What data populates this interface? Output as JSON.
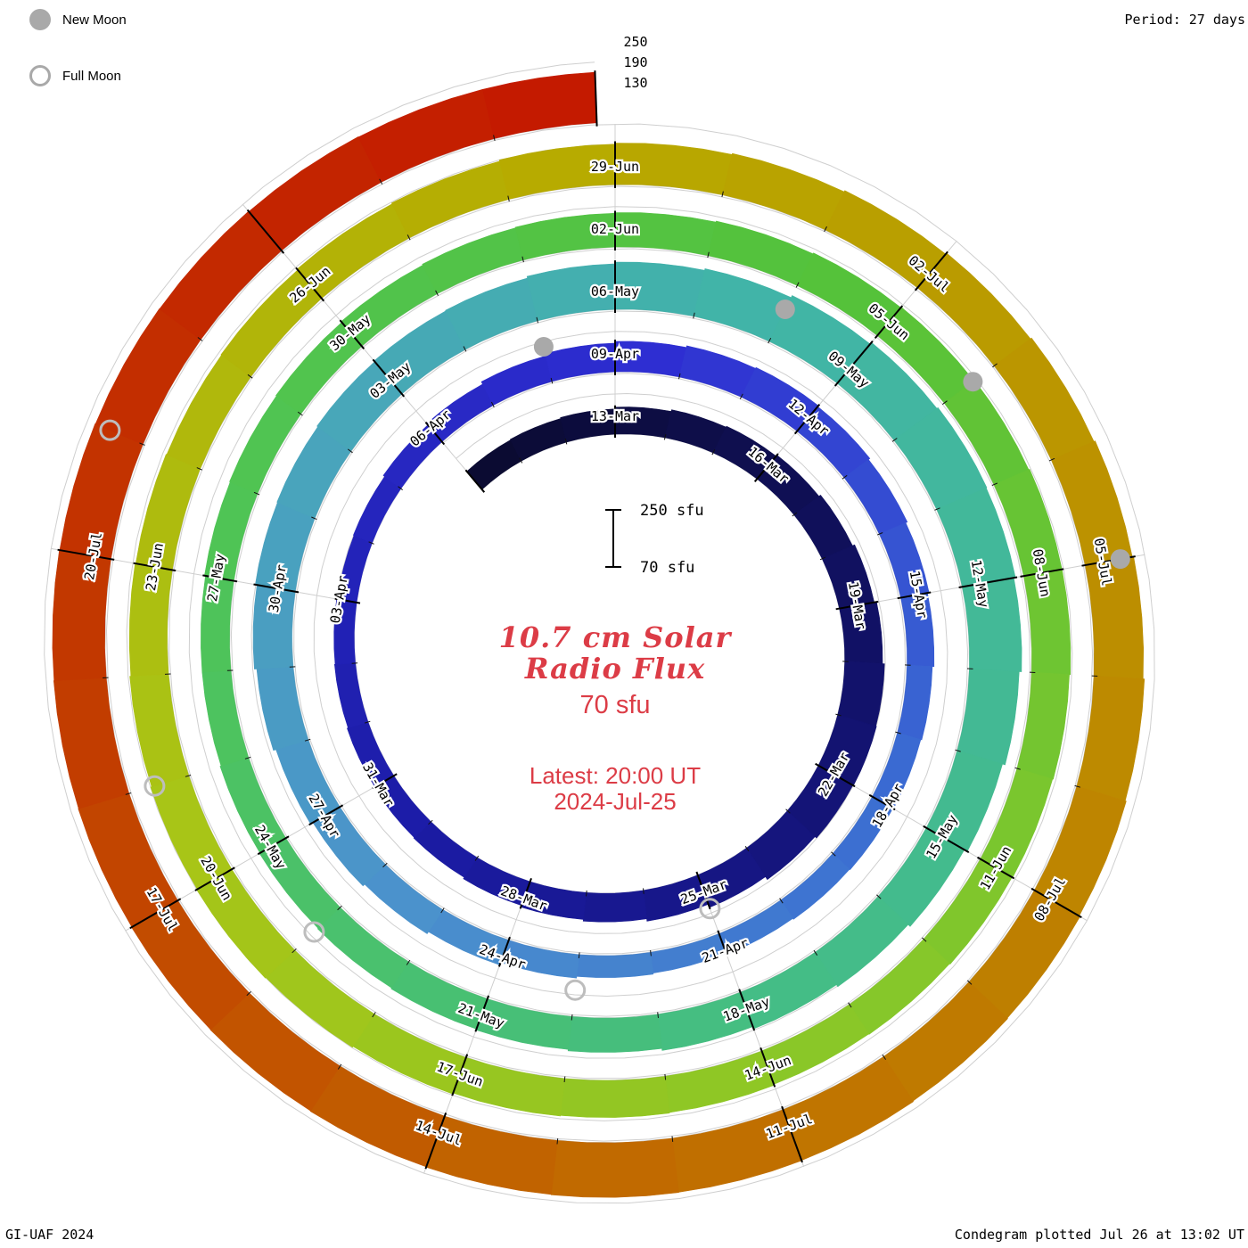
{
  "colors": {
    "accent": "#dc3c46",
    "moon_gray": "#a9a9a9"
  },
  "legend": {
    "new_moon_label": "New Moon",
    "full_moon_label": "Full Moon"
  },
  "top_right": {
    "period_label": "Period: 27 days"
  },
  "radial_axis_labels": [
    "250",
    "190",
    "130"
  ],
  "scale_bar": {
    "top": "250 sfu",
    "bottom": "70 sfu"
  },
  "center": {
    "title_line1": "10.7 cm Solar",
    "title_line2": "Radio Flux",
    "baseline_label": "70 sfu",
    "latest_line1": "Latest: 20:00 UT",
    "latest_line2": "2024-Jul-25"
  },
  "footer": {
    "left": "GI-UAF 2024",
    "right": "Condegram plotted Jul 26 at 13:02 UT"
  },
  "chart_data": {
    "type": "spiral",
    "title": "10.7 cm Solar Radio Flux",
    "units": "sfu",
    "baseline_sfu": 70,
    "max_sfu": 250,
    "gridline_sfu": [
      130,
      190,
      250
    ],
    "period_days": 27,
    "start_date": "2024-03-10",
    "end_date": "2024-07-25",
    "latest_reading": "20:00 UT 2024-Jul-25",
    "tick_interval_days": 3,
    "first_label_day_index": 3,
    "label_step_days": 3,
    "date_labels": [
      "13-Mar",
      "16-Mar",
      "19-Mar",
      "22-Mar",
      "25-Mar",
      "28-Mar",
      "31-Mar",
      "03-Apr",
      "06-Apr",
      "09-Apr",
      "12-Apr",
      "15-Apr",
      "18-Apr",
      "21-Apr",
      "24-Apr",
      "27-Apr",
      "30-Apr",
      "03-May",
      "06-May",
      "09-May",
      "12-May",
      "15-May",
      "18-May",
      "21-May",
      "24-May",
      "27-May",
      "30-May",
      "02-Jun",
      "05-Jun",
      "08-Jun",
      "11-Jun",
      "14-Jun",
      "17-Jun",
      "20-Jun",
      "23-Jun",
      "26-Jun",
      "29-Jun",
      "02-Jul",
      "05-Jul",
      "08-Jul",
      "11-Jul",
      "14-Jul",
      "17-Jul",
      "20-Jul"
    ],
    "daily_flux": [
      140,
      142,
      145,
      150,
      155,
      158,
      162,
      168,
      175,
      182,
      188,
      190,
      188,
      182,
      172,
      162,
      155,
      150,
      145,
      140,
      138,
      135,
      132,
      130,
      128,
      130,
      135,
      140,
      148,
      155,
      160,
      165,
      168,
      165,
      160,
      155,
      150,
      145,
      142,
      140,
      138,
      135,
      132,
      135,
      140,
      148,
      155,
      162,
      170,
      178,
      185,
      190,
      192,
      195,
      198,
      200,
      205,
      210,
      215,
      222,
      228,
      232,
      230,
      225,
      218,
      210,
      200,
      192,
      185,
      178,
      172,
      168,
      165,
      162,
      160,
      158,
      155,
      155,
      158,
      160,
      162,
      165,
      168,
      170,
      172,
      175,
      178,
      180,
      182,
      185,
      185,
      182,
      180,
      178,
      176,
      175,
      178,
      180,
      182,
      185,
      188,
      190,
      188,
      185,
      182,
      180,
      178,
      180,
      183,
      186,
      190,
      193,
      196,
      200,
      204,
      208,
      212,
      216,
      220,
      223,
      226,
      228,
      230,
      231,
      232,
      231,
      230,
      229,
      228,
      227,
      226,
      225,
      224,
      223,
      222,
      221,
      220,
      220
    ],
    "new_moons": [
      {
        "date": "2024-04-08",
        "day_index": 29
      },
      {
        "date": "2024-05-08",
        "day_index": 59
      },
      {
        "date": "2024-06-06",
        "day_index": 88
      },
      {
        "date": "2024-07-05",
        "day_index": 117
      }
    ],
    "full_moons": [
      {
        "date": "2024-03-25",
        "day_index": 15
      },
      {
        "date": "2024-04-23",
        "day_index": 44
      },
      {
        "date": "2024-05-23",
        "day_index": 74
      },
      {
        "date": "2024-06-21",
        "day_index": 103
      },
      {
        "date": "2024-07-21",
        "day_index": 133
      }
    ],
    "colormap": [
      [
        0,
        "#0b0b32"
      ],
      [
        10,
        "#12126b"
      ],
      [
        20,
        "#1c1ca8"
      ],
      [
        30,
        "#2e2ed2"
      ],
      [
        38,
        "#3a6ad2"
      ],
      [
        46,
        "#4b92cc"
      ],
      [
        52,
        "#49a4bc"
      ],
      [
        58,
        "#41b4a8"
      ],
      [
        68,
        "#44bd86"
      ],
      [
        78,
        "#4fc455"
      ],
      [
        86,
        "#55c23a"
      ],
      [
        94,
        "#86c72a"
      ],
      [
        102,
        "#a8c517"
      ],
      [
        110,
        "#b7ab00"
      ],
      [
        118,
        "#bd8a00"
      ],
      [
        124,
        "#c16a00"
      ],
      [
        130,
        "#c23d00"
      ],
      [
        137,
        "#c41a00"
      ]
    ]
  }
}
